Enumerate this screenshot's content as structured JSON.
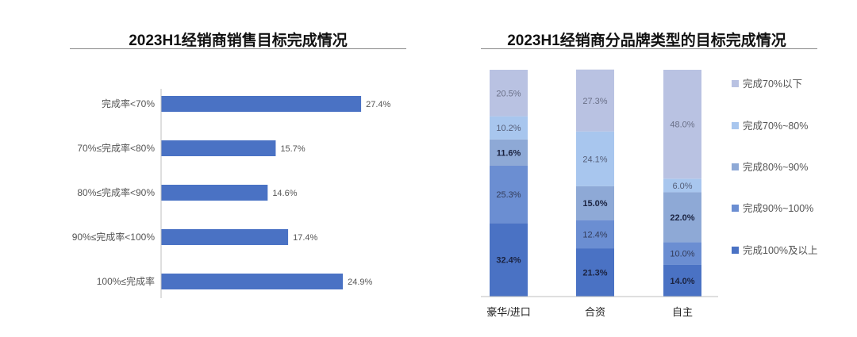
{
  "colors": {
    "bar": "#4a72c4",
    "lt70": "#b9c2e2",
    "s70_80": "#a8c6ee",
    "s80_90": "#8ea9d6",
    "s90_100": "#6b8ed2",
    "ge100": "#4a72c4"
  },
  "chart_data": [
    {
      "type": "bar",
      "orientation": "horizontal",
      "title": "2023H1经销商销售目标完成情况",
      "categories": [
        "完成率<70%",
        "70%≤完成率<80%",
        "80%≤完成率<90%",
        "90%≤完成率<100%",
        "100%≤完成率"
      ],
      "values": [
        27.4,
        15.7,
        14.6,
        17.4,
        24.9
      ],
      "value_labels": [
        "27.4%",
        "15.7%",
        "14.6%",
        "17.4%",
        "24.9%"
      ],
      "xlim": [
        0,
        30
      ],
      "grid": false
    },
    {
      "type": "bar",
      "stacked": true,
      "title": "2023H1经销商分品牌类型的目标完成情况",
      "categories": [
        "豪华/进口",
        "合资",
        "自主"
      ],
      "series": [
        {
          "name": "完成100%及以上",
          "values": [
            32.4,
            21.3,
            14.0
          ],
          "labels": [
            "32.4%",
            "21.3%",
            "14.0%"
          ],
          "bold": true
        },
        {
          "name": "完成90%~100%",
          "values": [
            25.3,
            12.4,
            10.0
          ],
          "labels": [
            "25.3%",
            "12.4%",
            "10.0%"
          ],
          "bold": false
        },
        {
          "name": "完成80%~90%",
          "values": [
            11.6,
            15.0,
            22.0
          ],
          "labels": [
            "11.6%",
            "15.0%",
            "22.0%"
          ],
          "bold": true
        },
        {
          "name": "完成70%~80%",
          "values": [
            10.2,
            24.1,
            6.0
          ],
          "labels": [
            "10.2%",
            "24.1%",
            "6.0%"
          ],
          "bold": false
        },
        {
          "name": "完成70%以下",
          "values": [
            20.5,
            27.3,
            48.0
          ],
          "labels": [
            "20.5%",
            "27.3%",
            "48.0%"
          ],
          "bold": false
        }
      ],
      "legend_order": [
        "完成70%以下",
        "完成70%~80%",
        "完成80%~90%",
        "完成90%~100%",
        "完成100%及以上"
      ],
      "legend_placement": "right",
      "ylim": [
        0,
        100
      ],
      "grid": false
    }
  ]
}
